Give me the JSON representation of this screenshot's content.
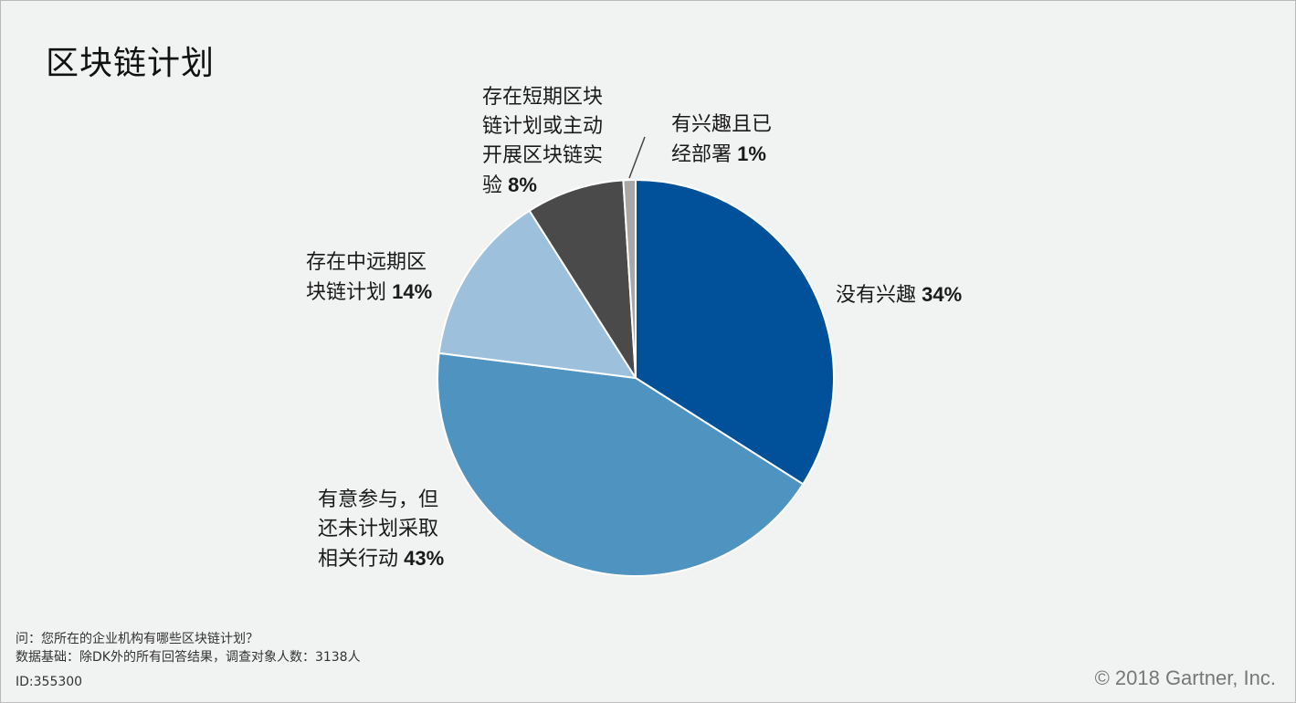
{
  "header": {
    "title": "区块链计划"
  },
  "chart_data": {
    "type": "pie",
    "title": "区块链计划",
    "slices": [
      {
        "label_lines": [
          "没有兴趣"
        ],
        "value": 34,
        "pct_label": "34%",
        "color": "#00519a"
      },
      {
        "label_lines": [
          "有意参与，但",
          "还未计划采取",
          "相关行动"
        ],
        "value": 43,
        "pct_label": "43%",
        "color": "#4f94c1"
      },
      {
        "label_lines": [
          "存在中远期区",
          "块链计划"
        ],
        "value": 14,
        "pct_label": "14%",
        "color": "#9dc1dd"
      },
      {
        "label_lines": [
          "存在短期区块",
          "链计划或主动",
          "开展区块链实",
          "验"
        ],
        "value": 8,
        "pct_label": "8%",
        "color": "#4a4a4a"
      },
      {
        "label_lines": [
          "有兴趣且已",
          "经部署"
        ],
        "value": 1,
        "pct_label": "1%",
        "color": "#a8a8a8"
      }
    ]
  },
  "footer": {
    "question": "问：您所在的企业机构有哪些区块链计划？",
    "base": "数据基础：除DK外的所有回答结果，调查对象人数：3138人",
    "id": "ID:355300",
    "copyright": "© 2018 Gartner, Inc."
  }
}
